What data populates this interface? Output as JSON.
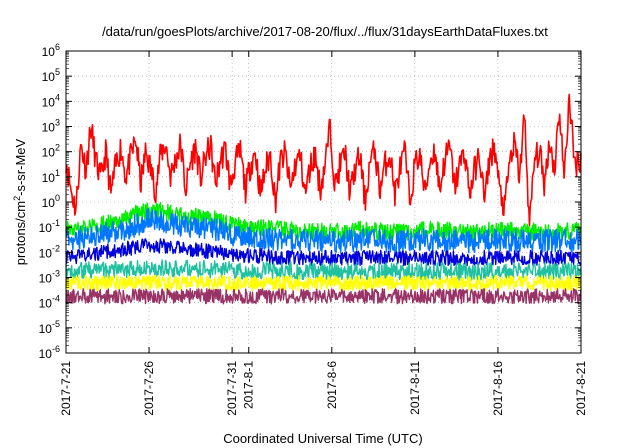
{
  "chart_data": {
    "type": "line",
    "title": "/data/run/goesPlots/archive/2017-08-20/flux/../flux/31daysEarthDataFluxes.txt",
    "xlabel": "Coordinated Universal Time (UTC)",
    "ylabel": "protons/cm²-s-sr-MeV",
    "ylabel_parts": {
      "pre": "protons/cm",
      "sup": "2",
      "post": "-s-sr-MeV"
    },
    "yscale": "log",
    "ylim_exp": [
      -6,
      6
    ],
    "xlim": [
      "2017-07-21",
      "2017-08-21"
    ],
    "grid": true,
    "y_ticks": [
      {
        "exp": -6,
        "base": "10",
        "sup": "-6"
      },
      {
        "exp": -5,
        "base": "10",
        "sup": "-5"
      },
      {
        "exp": -4,
        "base": "10",
        "sup": "-4"
      },
      {
        "exp": -3,
        "base": "10",
        "sup": "-3"
      },
      {
        "exp": -2,
        "base": "10",
        "sup": "-2"
      },
      {
        "exp": -1,
        "base": "10",
        "sup": "-1"
      },
      {
        "exp": 0,
        "base": "10",
        "sup": "0"
      },
      {
        "exp": 1,
        "base": "10",
        "sup": "1"
      },
      {
        "exp": 2,
        "base": "10",
        "sup": "2"
      },
      {
        "exp": 3,
        "base": "10",
        "sup": "3"
      },
      {
        "exp": 4,
        "base": "10",
        "sup": "4"
      },
      {
        "exp": 5,
        "base": "10",
        "sup": "5"
      },
      {
        "exp": 6,
        "base": "10",
        "sup": "6"
      }
    ],
    "x_ticks": [
      {
        "day": 0,
        "label": "2017-7-21"
      },
      {
        "day": 5,
        "label": "2017-7-26"
      },
      {
        "day": 10,
        "label": "2017-7-31"
      },
      {
        "day": 11,
        "label": "2017-8-1"
      },
      {
        "day": 16,
        "label": "2017-8-6"
      },
      {
        "day": 21,
        "label": "2017-8-11"
      },
      {
        "day": 26,
        "label": "2017-8-16"
      },
      {
        "day": 31,
        "label": "2017-8-21"
      }
    ],
    "series": [
      {
        "color": "#ff0000",
        "x": [
          0,
          0.3,
          0.6,
          0.9,
          1.2,
          1.5,
          1.8,
          2.1,
          2.4,
          2.7,
          3.0,
          3.3,
          3.6,
          3.9,
          4.2,
          4.5,
          4.8,
          5.1,
          5.4,
          5.7,
          6.0,
          6.3,
          6.6,
          6.9,
          7.2,
          7.5,
          7.8,
          8.1,
          8.4,
          8.7,
          9.0,
          9.3,
          9.6,
          9.9,
          10.2,
          10.5,
          10.8,
          11.1,
          11.4,
          11.7,
          12.0,
          12.3,
          12.6,
          12.9,
          13.2,
          13.5,
          13.8,
          14.1,
          14.4,
          14.7,
          15.0,
          15.3,
          15.6,
          15.9,
          16.2,
          16.5,
          16.8,
          17.1,
          17.4,
          17.7,
          18.0,
          18.3,
          18.6,
          18.9,
          19.2,
          19.5,
          19.8,
          20.1,
          20.4,
          20.7,
          21.0,
          21.3,
          21.6,
          21.9,
          22.2,
          22.5,
          22.8,
          23.1,
          23.4,
          23.7,
          24.0,
          24.3,
          24.6,
          24.9,
          25.2,
          25.5,
          25.8,
          26.1,
          26.4,
          26.7,
          27.0,
          27.3,
          27.6,
          27.9,
          28.2,
          28.5,
          28.8,
          29.1,
          29.4,
          29.7,
          30.0,
          30.3,
          30.6,
          30.9
        ],
        "y": [
          50,
          3,
          0.5,
          200,
          20,
          1000,
          40,
          8,
          100,
          2,
          30,
          150,
          10,
          60,
          300,
          5,
          100,
          20,
          3,
          80,
          200,
          10,
          50,
          200,
          3,
          40,
          150,
          8,
          60,
          180,
          5,
          50,
          120,
          4,
          40,
          100,
          3,
          30,
          100,
          2,
          20,
          80,
          1,
          40,
          90,
          3,
          30,
          70,
          2,
          25,
          80,
          3,
          35,
          1000,
          4,
          30,
          90,
          2,
          20,
          70,
          1,
          40,
          110,
          3,
          30,
          90,
          2,
          20,
          100,
          1,
          30,
          80,
          2,
          40,
          120,
          3,
          50,
          150,
          4,
          30,
          100,
          2,
          20,
          70,
          1,
          60,
          150,
          3,
          0.5,
          40,
          200,
          10,
          3000,
          0.1,
          50,
          100,
          5,
          300,
          20,
          5000,
          8,
          20000,
          30,
          50
        ]
      },
      {
        "color": "#00ee00",
        "x": [
          0,
          1,
          2,
          3,
          4,
          5,
          6,
          7,
          8,
          9,
          10,
          11,
          12,
          13,
          14,
          15,
          16,
          17,
          18,
          19,
          20,
          21,
          22,
          23,
          24,
          25,
          26,
          27,
          28,
          29,
          30,
          31
        ],
        "y": [
          0.08,
          0.1,
          0.12,
          0.15,
          0.3,
          0.5,
          0.4,
          0.3,
          0.25,
          0.2,
          0.12,
          0.1,
          0.09,
          0.08,
          0.07,
          0.07,
          0.06,
          0.07,
          0.08,
          0.07,
          0.06,
          0.07,
          0.08,
          0.07,
          0.06,
          0.07,
          0.07,
          0.08,
          0.07,
          0.06,
          0.07,
          0.07
        ]
      },
      {
        "color": "#0077ff",
        "x": [
          0,
          1,
          2,
          3,
          4,
          5,
          6,
          7,
          8,
          9,
          10,
          11,
          12,
          13,
          14,
          15,
          16,
          17,
          18,
          19,
          20,
          21,
          22,
          23,
          24,
          25,
          26,
          27,
          28,
          29,
          30,
          31
        ],
        "y": [
          0.03,
          0.04,
          0.05,
          0.07,
          0.1,
          0.2,
          0.15,
          0.12,
          0.1,
          0.08,
          0.05,
          0.04,
          0.035,
          0.03,
          0.03,
          0.03,
          0.025,
          0.03,
          0.03,
          0.03,
          0.025,
          0.03,
          0.03,
          0.03,
          0.025,
          0.03,
          0.03,
          0.03,
          0.025,
          0.03,
          0.03,
          0.03
        ]
      },
      {
        "color": "#0000dd",
        "x": [
          0,
          1,
          2,
          3,
          4,
          5,
          6,
          7,
          8,
          9,
          10,
          11,
          12,
          13,
          14,
          15,
          16,
          17,
          18,
          19,
          20,
          21,
          22,
          23,
          24,
          25,
          26,
          27,
          28,
          29,
          30,
          31
        ],
        "y": [
          0.006,
          0.008,
          0.01,
          0.012,
          0.015,
          0.02,
          0.018,
          0.015,
          0.012,
          0.01,
          0.008,
          0.007,
          0.007,
          0.006,
          0.006,
          0.006,
          0.006,
          0.006,
          0.006,
          0.006,
          0.006,
          0.006,
          0.006,
          0.006,
          0.006,
          0.006,
          0.006,
          0.006,
          0.006,
          0.006,
          0.006,
          0.006
        ]
      },
      {
        "color": "#20c0a0",
        "x": [
          0,
          2,
          4,
          6,
          8,
          10,
          12,
          14,
          16,
          18,
          20,
          22,
          24,
          26,
          28,
          30,
          31
        ],
        "y": [
          0.0018,
          0.002,
          0.0022,
          0.0025,
          0.0022,
          0.002,
          0.0018,
          0.0018,
          0.0017,
          0.0018,
          0.0017,
          0.0018,
          0.0017,
          0.0018,
          0.0017,
          0.0018,
          0.0018
        ]
      },
      {
        "color": "#ffff00",
        "x": [
          0,
          2,
          4,
          6,
          8,
          10,
          12,
          14,
          16,
          18,
          20,
          22,
          24,
          26,
          28,
          30,
          31
        ],
        "y": [
          0.0006,
          0.0006,
          0.0006,
          0.0006,
          0.0006,
          0.0006,
          0.0006,
          0.0006,
          0.0006,
          0.0006,
          0.0006,
          0.0006,
          0.0006,
          0.0006,
          0.0006,
          0.0006,
          0.0006
        ]
      },
      {
        "color": "#993366",
        "x": [
          0,
          2,
          4,
          6,
          8,
          10,
          12,
          14,
          16,
          18,
          20,
          22,
          24,
          26,
          28,
          30,
          31
        ],
        "y": [
          0.00018,
          0.00018,
          0.00018,
          0.00018,
          0.00018,
          0.00018,
          0.00018,
          0.00018,
          0.00018,
          0.00018,
          0.00018,
          0.00018,
          0.00018,
          0.00018,
          0.00018,
          0.00018,
          0.00018
        ]
      }
    ]
  }
}
